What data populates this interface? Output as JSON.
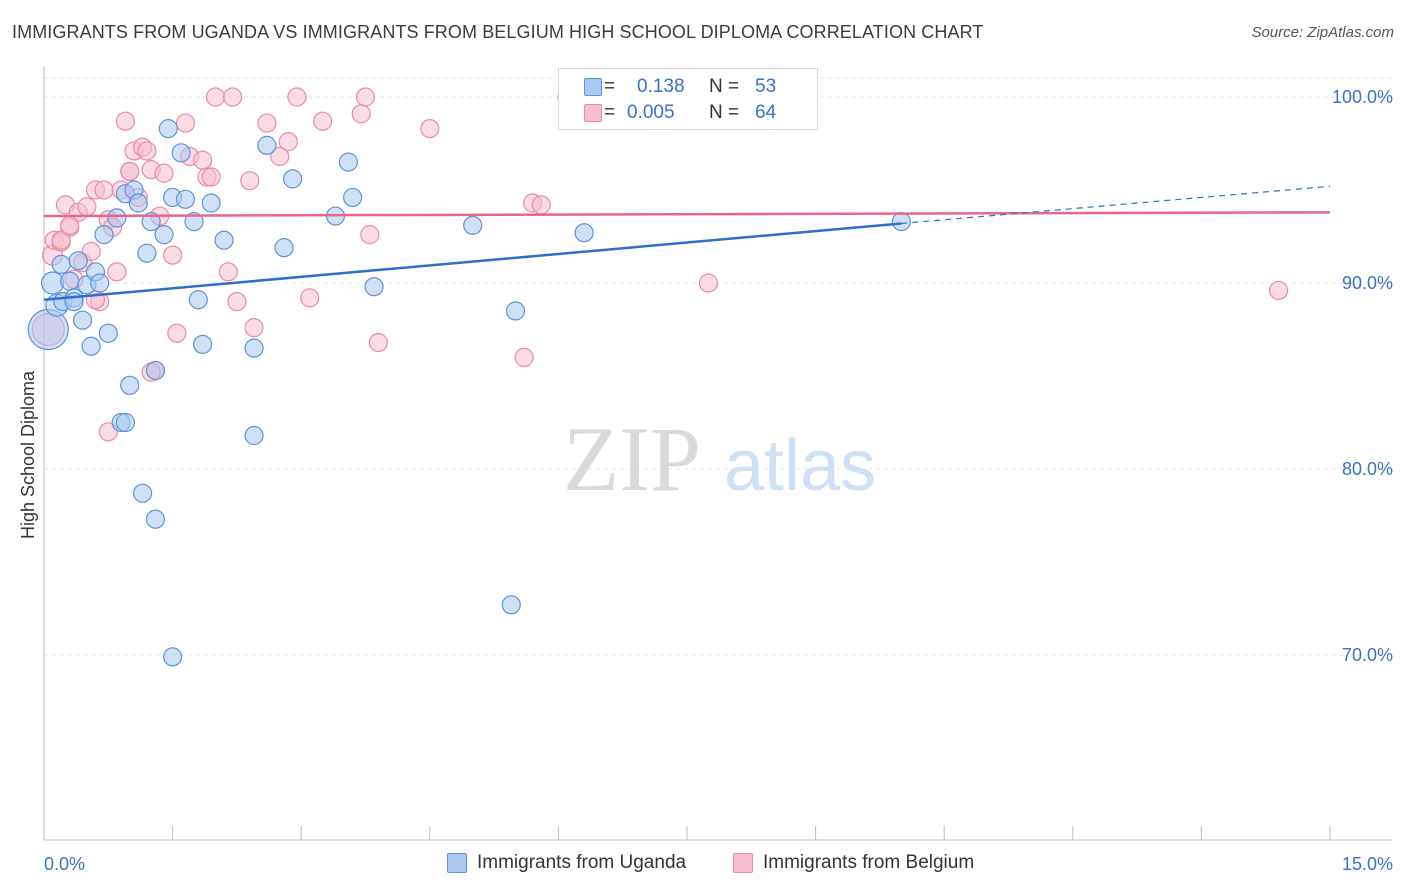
{
  "header": {
    "title": "IMMIGRANTS FROM UGANDA VS IMMIGRANTS FROM BELGIUM HIGH SCHOOL DIPLOMA CORRELATION CHART",
    "source": "Source: ZipAtlas.com"
  },
  "watermark": {
    "zip": "ZIP",
    "atlas": "atlas"
  },
  "legend": {
    "r_label": "R =",
    "n_label": "N =",
    "uganda": {
      "r": "0.138",
      "n": "53"
    },
    "belgium": {
      "r": "0.005",
      "n": "64"
    }
  },
  "bottom_legend": {
    "uganda": "Immigrants from Uganda",
    "belgium": "Immigrants from Belgium"
  },
  "colors": {
    "uganda_fill": "#aac8f0",
    "uganda_stroke": "#5f93d6",
    "uganda_line": "#2f6fcc",
    "belgium_fill": "#f7bdd0",
    "belgium_stroke": "#e98aa9",
    "belgium_line": "#e8668e",
    "axis_text": "#3a72c8",
    "grid": "#e6e6e6"
  },
  "chart_data": {
    "type": "scatter",
    "title": "IMMIGRANTS FROM UGANDA VS IMMIGRANTS FROM BELGIUM HIGH SCHOOL DIPLOMA CORRELATION CHART",
    "xlabel": "",
    "ylabel": "High School Diploma",
    "xlim": [
      0,
      15
    ],
    "ylim": [
      60,
      101
    ],
    "x_tick_labels": [
      {
        "value": 0,
        "label": "0.0%"
      },
      {
        "value": 15,
        "label": "15.0%"
      }
    ],
    "x_minor_ticks": [
      1.5,
      3.0,
      4.5,
      6.0,
      7.5,
      9.0,
      10.5,
      12.0,
      13.5,
      15.0
    ],
    "y_ticks": [
      {
        "value": 100,
        "label": "100.0%"
      },
      {
        "value": 90,
        "label": "90.0%"
      },
      {
        "value": 80,
        "label": "80.0%"
      },
      {
        "value": 70,
        "label": "70.0%"
      }
    ],
    "grid": true,
    "series": [
      {
        "name": "Immigrants from Uganda",
        "r": 0.138,
        "n": 53,
        "trend": {
          "x0": 0.0,
          "y0": 89.1,
          "x1": 10.0,
          "y1": 93.2,
          "dash_to_x": 15.0,
          "dash_to_y": 95.2
        },
        "points": [
          [
            0.05,
            87.5,
            20
          ],
          [
            0.1,
            90.0,
            11
          ],
          [
            0.15,
            88.8,
            11
          ],
          [
            0.2,
            91.0,
            9
          ],
          [
            0.22,
            89.0,
            9
          ],
          [
            0.3,
            90.1,
            9
          ],
          [
            0.35,
            89.2,
            9
          ],
          [
            0.4,
            91.2,
            9
          ],
          [
            0.45,
            88.0,
            9
          ],
          [
            0.5,
            89.9,
            9
          ],
          [
            0.55,
            86.6,
            9
          ],
          [
            0.6,
            90.6,
            9
          ],
          [
            0.65,
            90.0,
            9
          ],
          [
            0.75,
            87.3,
            9
          ],
          [
            0.85,
            93.5,
            9
          ],
          [
            0.9,
            82.5,
            9
          ],
          [
            0.95,
            94.8,
            9
          ],
          [
            1.0,
            84.5,
            9
          ],
          [
            1.05,
            95.0,
            9
          ],
          [
            1.1,
            94.3,
            9
          ],
          [
            1.15,
            78.7,
            9
          ],
          [
            1.2,
            91.6,
            9
          ],
          [
            1.3,
            85.3,
            9
          ],
          [
            1.3,
            77.3,
            9
          ],
          [
            1.4,
            92.6,
            9
          ],
          [
            1.45,
            98.3,
            9
          ],
          [
            1.5,
            94.6,
            9
          ],
          [
            1.5,
            69.9,
            9
          ],
          [
            1.6,
            97.0,
            9
          ],
          [
            1.65,
            94.5,
            9
          ],
          [
            1.75,
            93.3,
            9
          ],
          [
            1.8,
            89.1,
            9
          ],
          [
            1.85,
            86.7,
            9
          ],
          [
            1.95,
            94.3,
            9
          ],
          [
            2.1,
            92.3,
            9
          ],
          [
            2.45,
            81.8,
            9
          ],
          [
            2.45,
            86.5,
            9
          ],
          [
            2.6,
            97.4,
            9
          ],
          [
            2.8,
            91.9,
            9
          ],
          [
            2.9,
            95.6,
            9
          ],
          [
            3.4,
            93.6,
            9
          ],
          [
            3.55,
            96.5,
            9
          ],
          [
            3.6,
            94.6,
            9
          ],
          [
            3.85,
            89.8,
            9
          ],
          [
            5.0,
            93.1,
            9
          ],
          [
            5.5,
            88.5,
            9
          ],
          [
            5.45,
            72.7,
            9
          ],
          [
            6.3,
            92.7,
            9
          ],
          [
            10.0,
            93.3,
            9
          ],
          [
            0.95,
            82.5,
            9
          ],
          [
            0.7,
            92.6,
            9
          ],
          [
            1.25,
            93.3,
            9
          ],
          [
            0.35,
            89.0,
            9
          ]
        ]
      },
      {
        "name": "Immigrants from Belgium",
        "r": 0.005,
        "n": 64,
        "trend": {
          "x0": 0.0,
          "y0": 93.6,
          "x1": 15.0,
          "y1": 93.8
        },
        "points": [
          [
            0.05,
            87.5,
            16
          ],
          [
            0.1,
            91.5,
            10
          ],
          [
            0.12,
            92.3,
            9
          ],
          [
            0.2,
            92.2,
            9
          ],
          [
            0.25,
            94.2,
            9
          ],
          [
            0.3,
            93.0,
            9
          ],
          [
            0.35,
            90.2,
            9
          ],
          [
            0.4,
            93.8,
            9
          ],
          [
            0.45,
            91.1,
            9
          ],
          [
            0.5,
            94.1,
            9
          ],
          [
            0.55,
            91.7,
            9
          ],
          [
            0.6,
            95.0,
            9
          ],
          [
            0.65,
            89.0,
            9
          ],
          [
            0.7,
            95.0,
            9
          ],
          [
            0.75,
            93.4,
            9
          ],
          [
            0.8,
            93.0,
            9
          ],
          [
            0.85,
            90.6,
            9
          ],
          [
            0.9,
            95.0,
            9
          ],
          [
            0.95,
            98.7,
            9
          ],
          [
            1.0,
            96.0,
            9
          ],
          [
            1.05,
            97.1,
            9
          ],
          [
            1.1,
            94.6,
            9
          ],
          [
            1.15,
            97.3,
            9
          ],
          [
            1.2,
            97.1,
            9
          ],
          [
            1.25,
            96.1,
            9
          ],
          [
            1.3,
            85.3,
            9
          ],
          [
            1.35,
            93.6,
            9
          ],
          [
            1.4,
            95.9,
            9
          ],
          [
            1.5,
            91.5,
            9
          ],
          [
            1.55,
            87.3,
            9
          ],
          [
            1.65,
            98.6,
            9
          ],
          [
            1.7,
            96.8,
            9
          ],
          [
            1.85,
            96.6,
            9
          ],
          [
            1.9,
            95.7,
            9
          ],
          [
            1.95,
            95.7,
            9
          ],
          [
            2.0,
            100.0,
            9
          ],
          [
            2.2,
            100.0,
            9
          ],
          [
            2.15,
            90.6,
            9
          ],
          [
            2.25,
            89.0,
            9
          ],
          [
            2.4,
            95.5,
            9
          ],
          [
            2.45,
            87.6,
            9
          ],
          [
            2.6,
            98.6,
            9
          ],
          [
            2.75,
            96.8,
            9
          ],
          [
            2.85,
            97.6,
            9
          ],
          [
            2.95,
            100.0,
            9
          ],
          [
            3.1,
            89.2,
            9
          ],
          [
            3.25,
            98.7,
            9
          ],
          [
            3.7,
            99.1,
            9
          ],
          [
            3.75,
            100.0,
            9
          ],
          [
            3.8,
            92.6,
            9
          ],
          [
            3.9,
            86.8,
            9
          ],
          [
            4.5,
            98.3,
            9
          ],
          [
            5.7,
            94.3,
            9
          ],
          [
            5.8,
            94.2,
            9
          ],
          [
            5.6,
            86.0,
            9
          ],
          [
            6.1,
            100.0,
            9
          ],
          [
            7.75,
            90.0,
            9
          ],
          [
            14.4,
            89.6,
            9
          ],
          [
            0.75,
            82.0,
            9
          ],
          [
            0.6,
            89.1,
            9
          ],
          [
            0.2,
            92.3,
            9
          ],
          [
            0.3,
            93.1,
            9
          ],
          [
            1.0,
            96.0,
            9
          ],
          [
            1.25,
            85.2,
            9
          ]
        ]
      }
    ]
  }
}
